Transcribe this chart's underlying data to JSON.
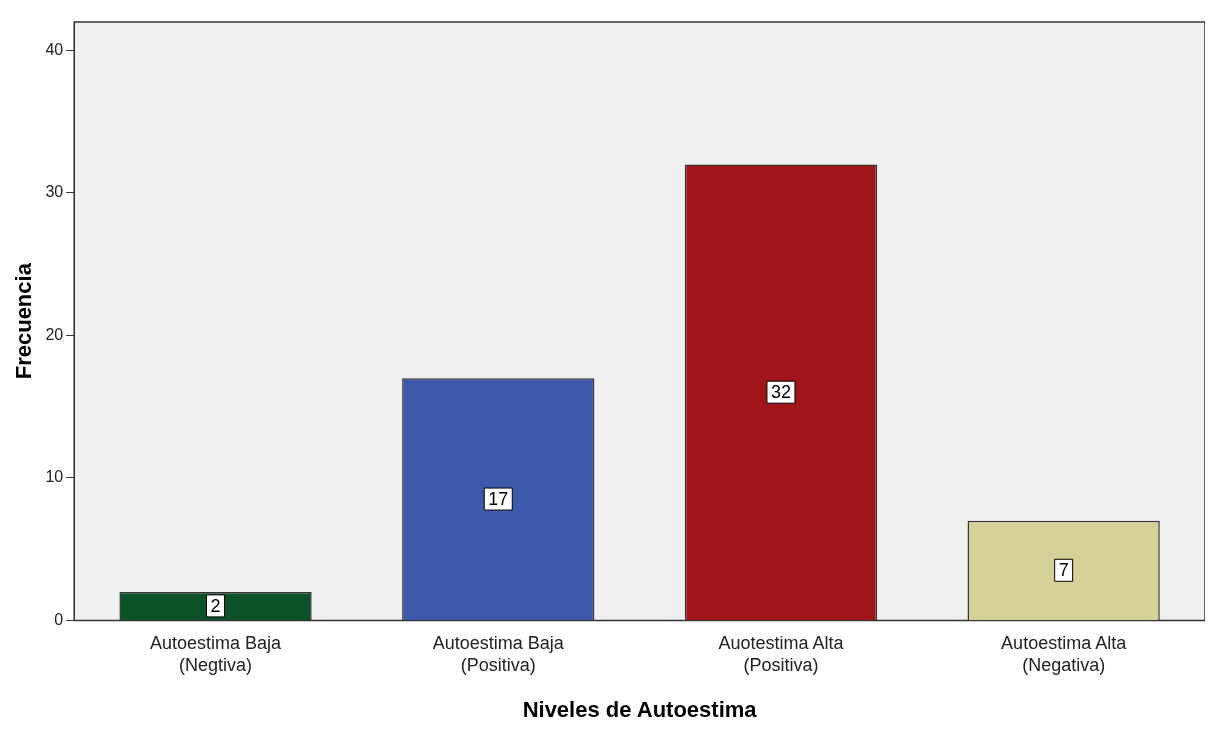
{
  "chart_data": {
    "type": "bar",
    "xlabel": "Niveles de Autoestima",
    "ylabel": "Frecuencia",
    "categories": [
      "Autoestima Baja\n(Negtiva)",
      "Autoestima Baja\n(Positiva)",
      "Auotestima Alta\n(Positiva)",
      "Autoestima Alta\n(Negativa)"
    ],
    "values": [
      2,
      17,
      32,
      7
    ],
    "colors": [
      "#0b5228",
      "#3e58ab",
      "#a0141a",
      "#d5cf98"
    ],
    "ylim": [
      0,
      42
    ],
    "yticks": [
      0,
      10,
      20,
      30,
      40
    ],
    "grid": false,
    "legend": false,
    "data_labels": true
  }
}
